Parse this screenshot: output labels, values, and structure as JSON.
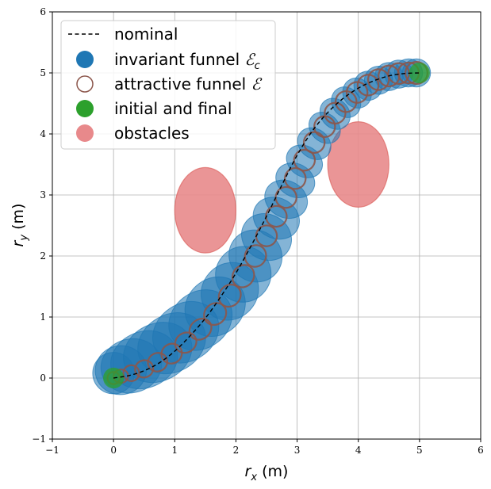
{
  "chart_data": {
    "type": "scatter",
    "xlabel": "r_x (m)",
    "ylabel": "r_y (m)",
    "xlabel_parts": {
      "symbol": "r",
      "sub": "x",
      "unit": " (m)"
    },
    "ylabel_parts": {
      "symbol": "r",
      "sub": "y",
      "unit": " (m)"
    },
    "xlim": [
      -1,
      6
    ],
    "ylim": [
      -1,
      6
    ],
    "xticks": [
      -1,
      0,
      1,
      2,
      3,
      4,
      5,
      6
    ],
    "yticks": [
      -1,
      0,
      1,
      2,
      3,
      4,
      5,
      6
    ],
    "grid": true,
    "legend_position": "upper-left",
    "colors": {
      "invariant": "#1f77b4",
      "attractive": "#8c564b",
      "initial_final": "#2ca02c",
      "obstacles": "#e8898b",
      "nominal": "#000000",
      "grid": "#b0b0b0"
    },
    "legend": [
      {
        "key": "nominal",
        "label": "nominal",
        "math": ""
      },
      {
        "key": "invariant",
        "label": "invariant funnel ",
        "math": "c"
      },
      {
        "key": "attractive",
        "label": "attractive funnel ",
        "math": ""
      },
      {
        "key": "initial_final",
        "label": "initial and final",
        "math": ""
      },
      {
        "key": "obstacles",
        "label": "obstacles",
        "math": ""
      }
    ],
    "nominal": {
      "x": [
        0.0,
        0.25,
        0.5,
        0.75,
        1.0,
        1.25,
        1.5,
        1.75,
        2.0,
        2.25,
        2.5,
        2.75,
        3.0,
        3.25,
        3.5,
        3.75,
        4.0,
        4.25,
        4.5,
        4.75,
        5.0
      ],
      "y": [
        0.0,
        0.04,
        0.12,
        0.25,
        0.44,
        0.69,
        0.98,
        1.33,
        1.72,
        2.17,
        2.65,
        3.16,
        3.65,
        4.05,
        4.35,
        4.58,
        4.75,
        4.87,
        4.95,
        4.99,
        5.0
      ]
    },
    "invariant_funnel": {
      "x": [
        0.0,
        0.12,
        0.29,
        0.5,
        0.72,
        0.95,
        1.18,
        1.42,
        1.66,
        1.9,
        2.12,
        2.32,
        2.5,
        2.66,
        2.82,
        2.97,
        3.12,
        3.28,
        3.45,
        3.62,
        3.8,
        3.98,
        4.16,
        4.33,
        4.5,
        4.66,
        4.82,
        4.95
      ],
      "y": [
        0.08,
        0.13,
        0.2,
        0.3,
        0.42,
        0.57,
        0.75,
        0.95,
        1.17,
        1.42,
        1.7,
        2.0,
        2.31,
        2.62,
        2.93,
        3.24,
        3.55,
        3.84,
        4.1,
        4.33,
        4.52,
        4.67,
        4.79,
        4.88,
        4.94,
        4.98,
        5.0,
        5.0
      ],
      "rx": [
        0.34,
        0.42,
        0.5,
        0.56,
        0.58,
        0.58,
        0.57,
        0.55,
        0.52,
        0.49,
        0.46,
        0.42,
        0.37,
        0.33,
        0.3,
        0.27,
        0.25,
        0.24,
        0.23,
        0.23,
        0.23,
        0.23,
        0.23,
        0.23,
        0.23,
        0.23,
        0.23,
        0.23
      ],
      "ry": [
        0.34,
        0.4,
        0.44,
        0.46,
        0.47,
        0.47,
        0.47,
        0.46,
        0.46,
        0.45,
        0.45,
        0.44,
        0.42,
        0.39,
        0.36,
        0.33,
        0.31,
        0.29,
        0.28,
        0.27,
        0.26,
        0.25,
        0.24,
        0.23,
        0.23,
        0.23,
        0.23,
        0.23
      ],
      "rot": [
        0,
        10,
        16,
        22,
        26,
        30,
        34,
        38,
        42,
        47,
        52,
        56,
        60,
        62,
        63,
        62,
        58,
        52,
        46,
        40,
        34,
        28,
        22,
        16,
        11,
        6,
        3,
        0
      ]
    },
    "attractive_funnel": {
      "x": [
        0.0,
        0.12,
        0.29,
        0.5,
        0.72,
        0.95,
        1.18,
        1.42,
        1.66,
        1.9,
        2.12,
        2.32,
        2.5,
        2.66,
        2.82,
        2.97,
        3.12,
        3.28,
        3.45,
        3.62,
        3.8,
        3.98,
        4.16,
        4.33,
        4.5,
        4.66,
        4.82,
        4.95
      ],
      "y": [
        0.0,
        0.03,
        0.08,
        0.15,
        0.26,
        0.4,
        0.58,
        0.8,
        1.05,
        1.35,
        1.67,
        2.0,
        2.33,
        2.65,
        2.96,
        3.27,
        3.57,
        3.86,
        4.12,
        4.34,
        4.53,
        4.68,
        4.8,
        4.89,
        4.95,
        4.99,
        5.0,
        5.0
      ],
      "rx": [
        0.1,
        0.12,
        0.13,
        0.15,
        0.16,
        0.17,
        0.18,
        0.19,
        0.19,
        0.19,
        0.19,
        0.18,
        0.17,
        0.17,
        0.17,
        0.17,
        0.17,
        0.17,
        0.17,
        0.17,
        0.17,
        0.17,
        0.17,
        0.17,
        0.17,
        0.17,
        0.17,
        0.18
      ],
      "ry": [
        0.1,
        0.11,
        0.13,
        0.14,
        0.15,
        0.16,
        0.16,
        0.16,
        0.17,
        0.17,
        0.17,
        0.17,
        0.17,
        0.17,
        0.17,
        0.17,
        0.17,
        0.17,
        0.17,
        0.17,
        0.17,
        0.17,
        0.17,
        0.17,
        0.17,
        0.17,
        0.17,
        0.18
      ],
      "rot": [
        0,
        10,
        16,
        22,
        26,
        30,
        34,
        38,
        42,
        47,
        52,
        56,
        60,
        62,
        63,
        62,
        58,
        52,
        46,
        40,
        34,
        28,
        22,
        16,
        11,
        6,
        3,
        0
      ]
    },
    "initial_final": [
      {
        "x": 0.0,
        "y": 0.0,
        "r": 0.17
      },
      {
        "x": 5.0,
        "y": 5.0,
        "r": 0.17
      }
    ],
    "obstacles": [
      {
        "x": 1.5,
        "y": 2.75,
        "rx": 0.5,
        "ry": 0.7
      },
      {
        "x": 4.0,
        "y": 3.5,
        "rx": 0.5,
        "ry": 0.7
      }
    ]
  }
}
